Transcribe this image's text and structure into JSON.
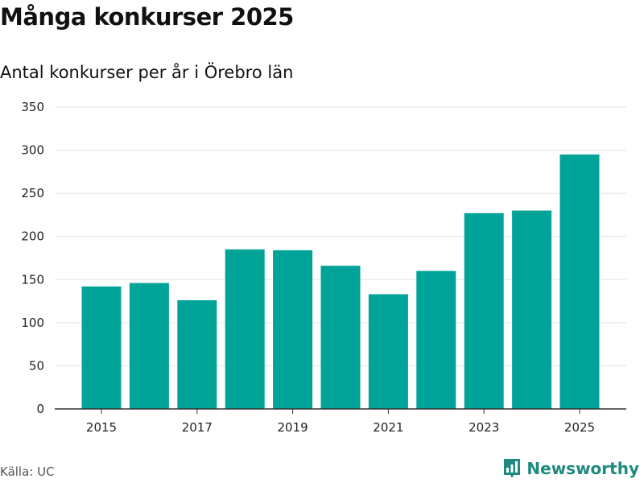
{
  "header": {
    "title": "Många konkurser 2025",
    "subtitle": "Antal konkurser per år i Örebro län"
  },
  "footer": {
    "source": "Källa: UC",
    "brand": "Newsworthy"
  },
  "colors": {
    "bar": "#00a398",
    "grid": "#e3e3e3",
    "axis": "#333333",
    "brand": "#1f8a7f"
  },
  "chart_data": {
    "type": "bar",
    "title": "Många konkurser 2025",
    "subtitle": "Antal konkurser per år i Örebro län",
    "xlabel": "",
    "ylabel": "",
    "categories": [
      "2015",
      "2016",
      "2017",
      "2018",
      "2019",
      "2020",
      "2021",
      "2022",
      "2023",
      "2024",
      "2025"
    ],
    "values": [
      142,
      146,
      126,
      185,
      184,
      166,
      133,
      160,
      227,
      230,
      295
    ],
    "x_tick_labels": [
      "2015",
      "2017",
      "2019",
      "2021",
      "2023",
      "2025"
    ],
    "y_ticks": [
      0,
      50,
      100,
      150,
      200,
      250,
      300,
      350
    ],
    "ylim": [
      0,
      350
    ],
    "grid": true,
    "legend": "none"
  }
}
